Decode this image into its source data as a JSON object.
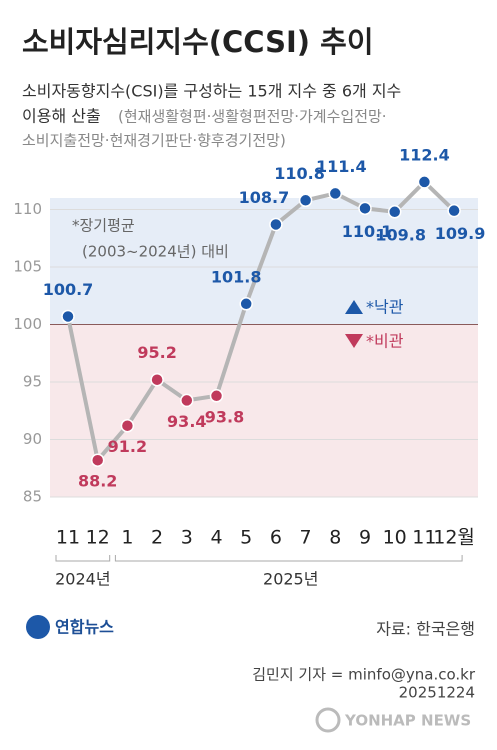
{
  "chart_data": {
    "type": "line",
    "title": "소비자심리지수(CCSI) 추이",
    "subtitle": [
      "소비자동향지수(CSI)를 구성하는 15개 지수 중 6개 지수",
      "이용해 산출",
      "(현재생활형편·생활형편전망·가계수입전망·",
      "소비지출전망·현재경기판단·향후경기전망)"
    ],
    "annotation": [
      "*장기평균",
      "(2003~2024년) 대비"
    ],
    "legend": [
      {
        "label": "*낙관",
        "color": "#1d58a8"
      },
      {
        "label": "*비관",
        "color": "#c03a5c"
      }
    ],
    "categories": [
      "11",
      "12",
      "1",
      "2",
      "3",
      "4",
      "5",
      "6",
      "7",
      "8",
      "9",
      "10",
      "11",
      "12월"
    ],
    "years": [
      "2024년",
      "2025년"
    ],
    "values": [
      100.7,
      88.2,
      91.2,
      95.2,
      93.4,
      93.8,
      101.8,
      108.7,
      110.8,
      111.4,
      110.1,
      109.8,
      112.4,
      109.9
    ],
    "baseline": 100,
    "line_color": "#b5b5b5",
    "ylim": [
      85,
      111
    ],
    "yticks": [
      85,
      90,
      95,
      100,
      105,
      110
    ],
    "grid": true,
    "source": "자료: 한국은행",
    "logo": "연합뉴스",
    "credit": "김민지 기자 = minfo@yna.co.kr",
    "date": "20251224",
    "watermark": "YONHAP NEWS"
  }
}
